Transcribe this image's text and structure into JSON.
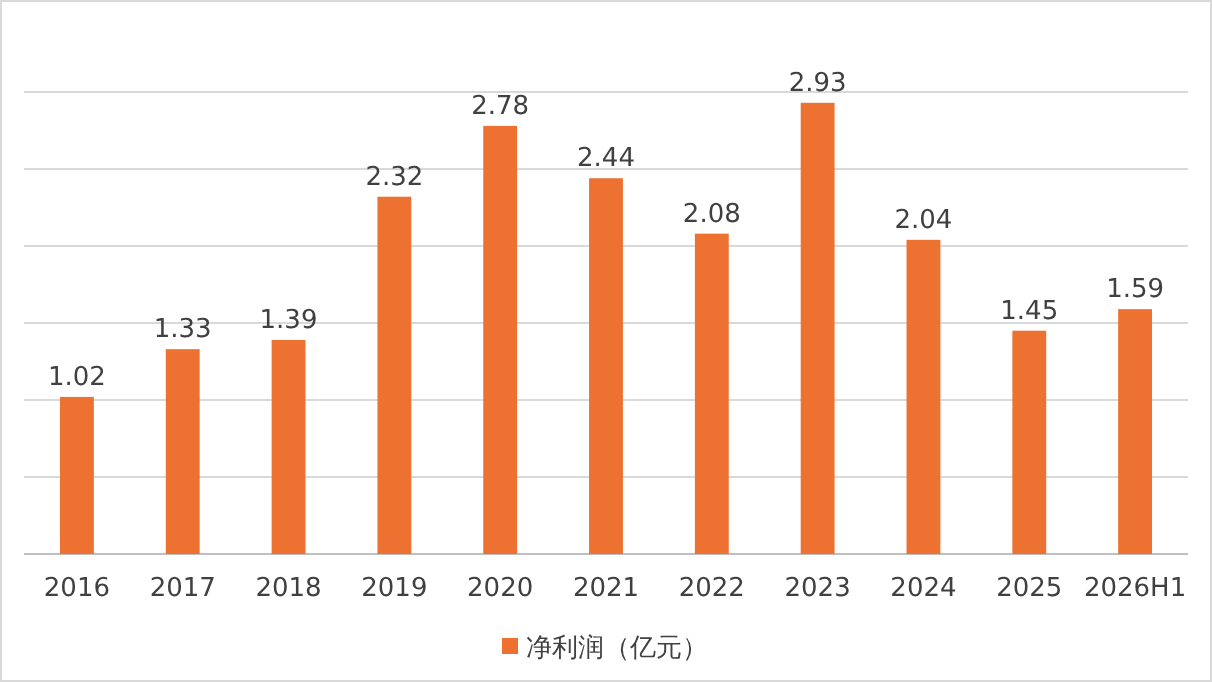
{
  "chart_data": {
    "type": "bar",
    "categories": [
      "2016",
      "2017",
      "2018",
      "2019",
      "2020",
      "2021",
      "2022",
      "2023",
      "2024",
      "2025",
      "2026H1"
    ],
    "series": [
      {
        "name": "净利润（亿元）",
        "color": "#ed7131",
        "values": [
          1.02,
          1.33,
          1.39,
          2.32,
          2.78,
          2.44,
          2.08,
          2.93,
          2.04,
          1.45,
          1.59
        ]
      }
    ],
    "ylim": [
      0,
      3
    ],
    "yticks": [
      {
        "value": 0,
        "label": null
      },
      {
        "value": 0.5,
        "label": null
      },
      {
        "value": 1,
        "label": null
      },
      {
        "value": 1.5,
        "label": null
      },
      {
        "value": 2,
        "label": null
      },
      {
        "value": 2.5,
        "label": null
      },
      {
        "value": 3,
        "label": null
      }
    ],
    "tick_labels": "x",
    "grid": "y",
    "legend": "bottom",
    "data_labels": true
  }
}
